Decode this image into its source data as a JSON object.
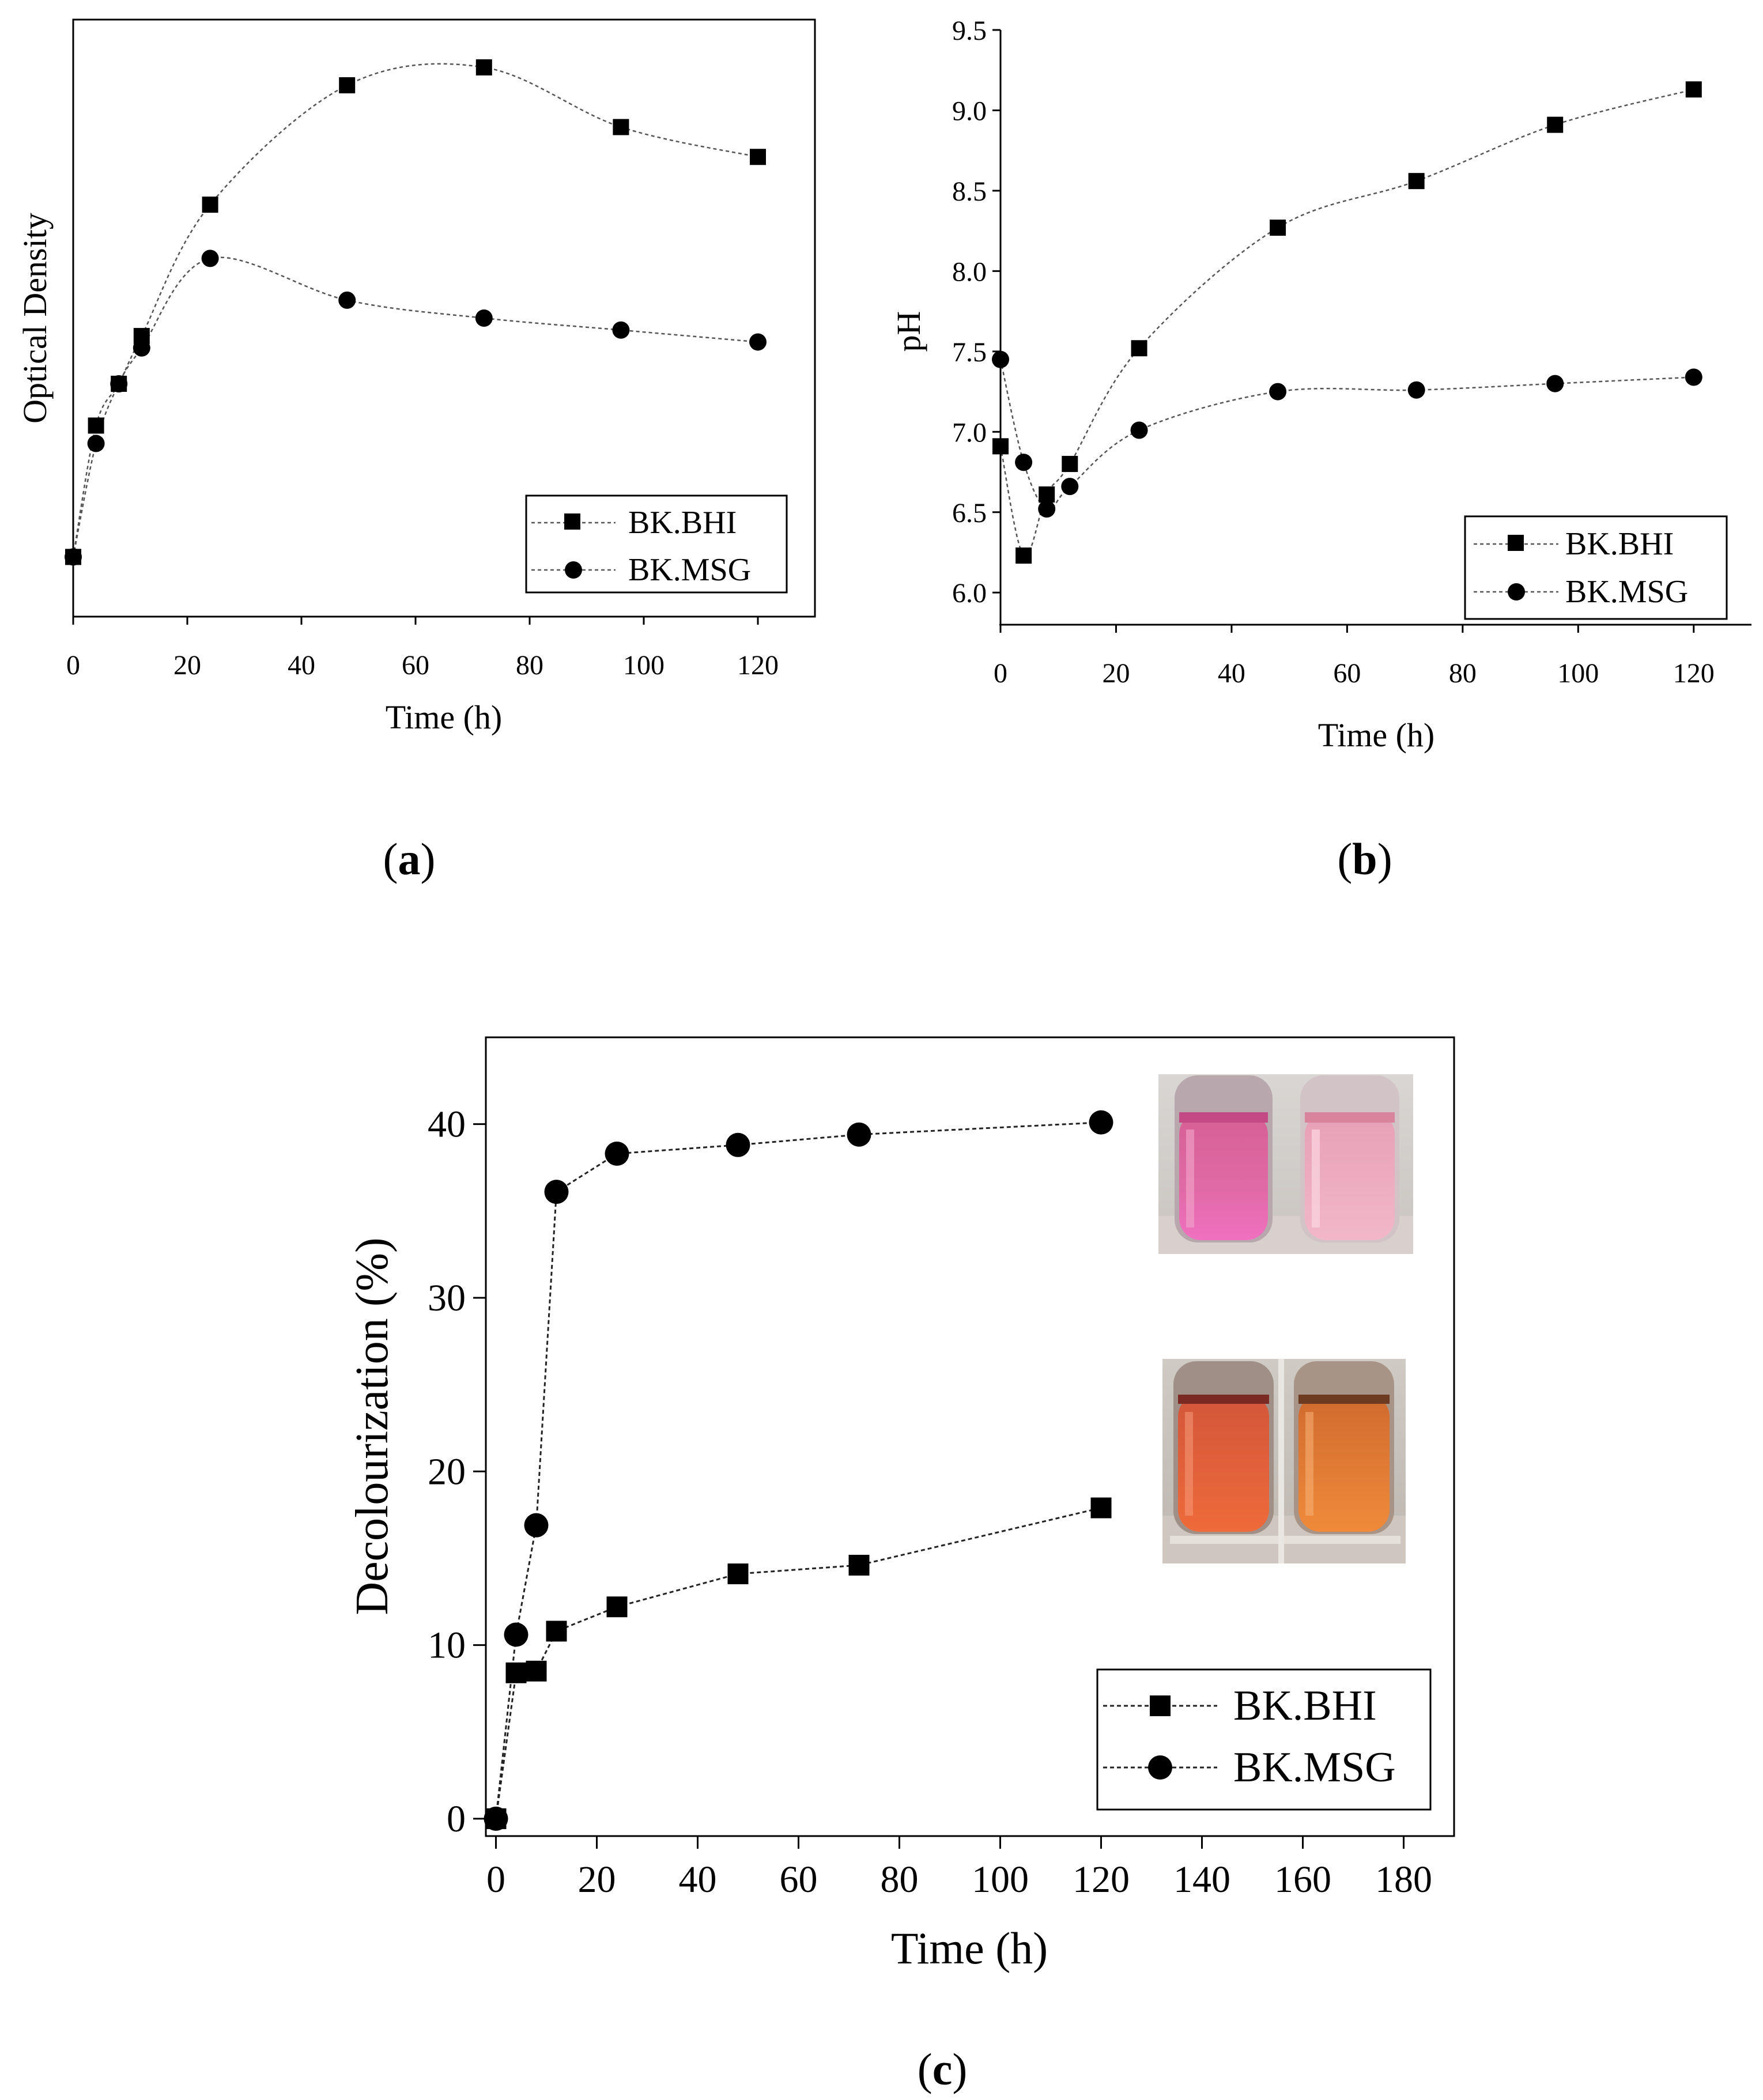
{
  "chart_data": [
    {
      "type": "line",
      "panel": "a",
      "caption": "a",
      "title": "",
      "xlabel": "Time (h)",
      "ylabel": "Optical Density",
      "xlim": [
        0,
        130
      ],
      "ylim": [
        0,
        1
      ],
      "x_ticks": [
        0,
        20,
        40,
        60,
        80,
        100,
        120
      ],
      "y_ticks": [],
      "x": [
        0,
        4,
        8,
        12,
        24,
        48,
        72,
        96,
        120
      ],
      "series": [
        {
          "name": "BK.BHI",
          "marker": "square",
          "values": [
            0.1,
            0.32,
            0.39,
            0.47,
            0.69,
            0.89,
            0.92,
            0.82,
            0.77
          ]
        },
        {
          "name": "BK.MSG",
          "marker": "circle",
          "values": [
            0.1,
            0.29,
            0.39,
            0.45,
            0.6,
            0.53,
            0.5,
            0.48,
            0.46
          ]
        }
      ],
      "legend": "bottom-right"
    },
    {
      "type": "line",
      "panel": "b",
      "caption": "b",
      "title": "",
      "xlabel": "Time (h)",
      "ylabel": "pH",
      "xlim": [
        0,
        130
      ],
      "ylim": [
        5.8,
        9.5
      ],
      "x_ticks": [
        0,
        20,
        40,
        60,
        80,
        100,
        120
      ],
      "y_ticks": [
        6.0,
        6.5,
        7.0,
        7.5,
        8.0,
        8.5,
        9.0,
        9.5
      ],
      "y_tick_labels": [
        "6.0",
        "6.5",
        "7.0",
        "7.5",
        "8.0",
        "8.5",
        "9.0",
        "9.5"
      ],
      "x": [
        0,
        4,
        8,
        12,
        24,
        48,
        72,
        96,
        120
      ],
      "series": [
        {
          "name": "BK.BHI",
          "marker": "square",
          "values": [
            6.91,
            6.23,
            6.61,
            6.8,
            7.52,
            8.27,
            8.56,
            8.91,
            9.13
          ]
        },
        {
          "name": "BK.MSG",
          "marker": "circle",
          "values": [
            7.45,
            6.81,
            6.52,
            6.66,
            7.01,
            7.25,
            7.26,
            7.3,
            7.34
          ]
        }
      ],
      "legend": "bottom-right"
    },
    {
      "type": "line",
      "panel": "c",
      "caption": "c",
      "title": "",
      "xlabel": "Time (h)",
      "ylabel": "Decolourization (%)",
      "xlim": [
        -2,
        190
      ],
      "ylim": [
        -1,
        45
      ],
      "x_ticks": [
        0,
        20,
        40,
        60,
        80,
        100,
        120,
        140,
        160,
        180
      ],
      "y_ticks": [
        0,
        10,
        20,
        30,
        40
      ],
      "x": [
        0,
        4,
        8,
        12,
        24,
        48,
        72,
        120
      ],
      "series": [
        {
          "name": "BK.BHI",
          "marker": "square",
          "values": [
            0,
            8.4,
            8.5,
            10.8,
            12.2,
            14.1,
            14.6,
            17.9
          ]
        },
        {
          "name": "BK.MSG",
          "marker": "circle",
          "values": [
            0,
            10.6,
            16.9,
            36.1,
            38.3,
            38.8,
            39.4,
            40.1
          ]
        }
      ],
      "legend": "bottom-right",
      "inset_images": [
        "tube-photo-pink",
        "tube-photo-orange"
      ]
    }
  ]
}
